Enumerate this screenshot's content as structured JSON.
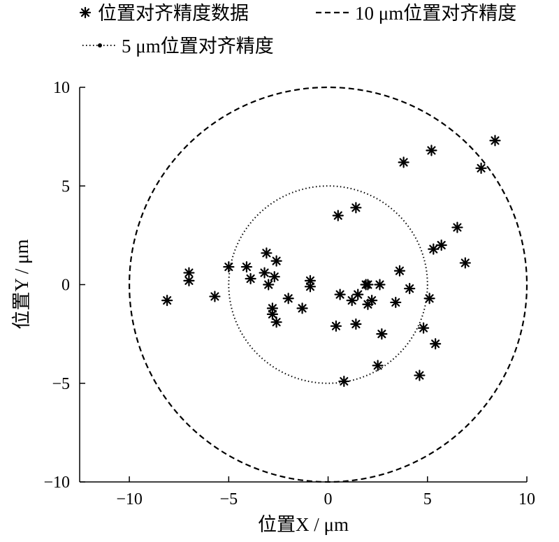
{
  "chart_data": {
    "type": "scatter",
    "title": "",
    "xlabel": "位置X / μm",
    "ylabel": "位置Y / μm",
    "xlim": [
      -12.5,
      10
    ],
    "ylim": [
      -10,
      10
    ],
    "xticks": [
      -10,
      -5,
      0,
      5,
      10
    ],
    "yticks": [
      -10,
      -5,
      0,
      5,
      10
    ],
    "xtick_labels": [
      "−10",
      "−5",
      "0",
      "5",
      "10"
    ],
    "ytick_labels": [
      "−10",
      "−5",
      "0",
      "5",
      "10"
    ],
    "grid": false,
    "legend": {
      "placement": "top-left",
      "entries": [
        "位置对齐精度数据",
        "10 μm位置对齐精度",
        "5 μm位置对齐精度"
      ]
    },
    "circles": [
      {
        "name": "10 μm位置对齐精度",
        "radius": 10,
        "style": "dashed"
      },
      {
        "name": "5 μm位置对齐精度",
        "radius": 5,
        "style": "dotted"
      }
    ],
    "series": [
      {
        "name": "位置对齐精度数据",
        "marker": "asterisk",
        "points": [
          [
            8.4,
            7.3
          ],
          [
            5.2,
            6.8
          ],
          [
            3.8,
            6.2
          ],
          [
            7.7,
            5.9
          ],
          [
            0.5,
            3.5
          ],
          [
            1.4,
            3.9
          ],
          [
            6.5,
            2.9
          ],
          [
            5.7,
            2.0
          ],
          [
            5.3,
            1.8
          ],
          [
            6.9,
            1.1
          ],
          [
            -7.0,
            0.6
          ],
          [
            -7.0,
            0.2
          ],
          [
            -5.0,
            0.9
          ],
          [
            -4.1,
            0.9
          ],
          [
            -3.9,
            0.3
          ],
          [
            -3.1,
            1.6
          ],
          [
            -3.2,
            0.6
          ],
          [
            -3.0,
            0.0
          ],
          [
            -2.7,
            0.4
          ],
          [
            -2.6,
            1.2
          ],
          [
            -0.9,
            0.2
          ],
          [
            -0.9,
            -0.1
          ],
          [
            3.6,
            0.7
          ],
          [
            4.1,
            -0.2
          ],
          [
            1.9,
            0.0
          ],
          [
            2.0,
            0.0
          ],
          [
            2.6,
            0.0
          ],
          [
            -8.1,
            -0.8
          ],
          [
            -5.7,
            -0.6
          ],
          [
            -2.0,
            -0.7
          ],
          [
            -1.3,
            -1.2
          ],
          [
            -2.8,
            -1.2
          ],
          [
            -2.8,
            -1.5
          ],
          [
            -2.6,
            -1.9
          ],
          [
            0.6,
            -0.5
          ],
          [
            1.2,
            -0.8
          ],
          [
            1.5,
            -0.5
          ],
          [
            2.0,
            -1.0
          ],
          [
            2.2,
            -0.8
          ],
          [
            3.4,
            -0.9
          ],
          [
            5.1,
            -0.7
          ],
          [
            0.4,
            -2.1
          ],
          [
            1.4,
            -2.0
          ],
          [
            2.7,
            -2.5
          ],
          [
            4.8,
            -2.2
          ],
          [
            5.4,
            -3.0
          ],
          [
            2.5,
            -4.1
          ],
          [
            4.6,
            -4.6
          ],
          [
            0.8,
            -4.9
          ]
        ]
      }
    ]
  }
}
